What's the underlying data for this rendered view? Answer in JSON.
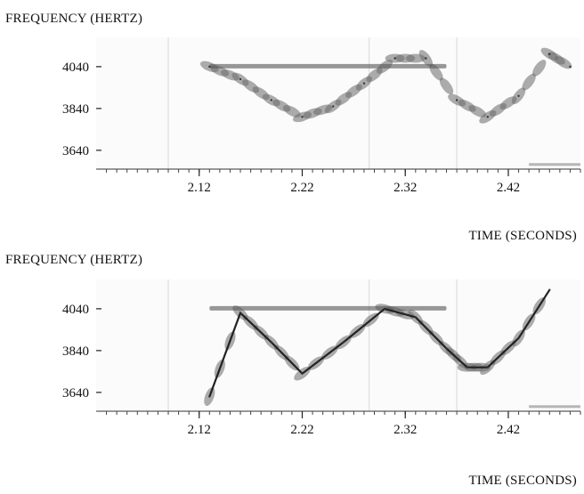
{
  "chart_data": [
    {
      "type": "spectrogram",
      "ylabel": "FREQUENCY (HERTZ)",
      "xlabel": "TIME (SECONDS)",
      "xticks": [
        "2.12",
        "2.22",
        "2.32",
        "2.42"
      ],
      "yticks": [
        "4040",
        "3840",
        "3640"
      ],
      "xlim": [
        2.02,
        2.49
      ],
      "ylim": [
        3550,
        4180
      ],
      "series": [
        {
          "points": [
            [
              2.13,
              4040
            ],
            [
              2.16,
              3980
            ],
            [
              2.19,
              3880
            ],
            [
              2.22,
              3800
            ],
            [
              2.25,
              3850
            ],
            [
              2.28,
              3960
            ],
            [
              2.31,
              4080
            ],
            [
              2.34,
              4080
            ],
            [
              2.37,
              3880
            ],
            [
              2.4,
              3800
            ],
            [
              2.43,
              3900
            ],
            [
              2.46,
              4100
            ],
            [
              2.48,
              4040
            ]
          ]
        }
      ]
    },
    {
      "type": "spectrogram",
      "ylabel": "FREQUENCY (HERTZ)",
      "xlabel": "TIME (SECONDS)",
      "xticks": [
        "2.12",
        "2.22",
        "2.32",
        "2.42"
      ],
      "yticks": [
        "4040",
        "3840",
        "3640"
      ],
      "xlim": [
        2.02,
        2.49
      ],
      "ylim": [
        3550,
        4180
      ],
      "series": [
        {
          "points": [
            [
              2.13,
              3620
            ],
            [
              2.16,
              4020
            ],
            [
              2.19,
              3880
            ],
            [
              2.22,
              3730
            ],
            [
              2.26,
              3880
            ],
            [
              2.3,
              4040
            ],
            [
              2.33,
              4000
            ],
            [
              2.36,
              3850
            ],
            [
              2.38,
              3760
            ],
            [
              2.4,
              3760
            ],
            [
              2.43,
              3900
            ],
            [
              2.46,
              4130
            ]
          ]
        }
      ]
    }
  ]
}
